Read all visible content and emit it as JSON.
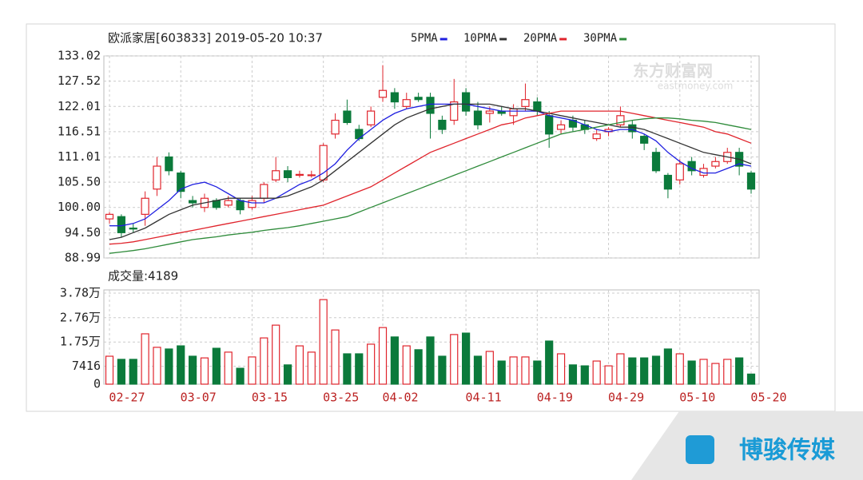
{
  "chart_data": {
    "type": "candlestick",
    "title": "欧派家居[603833] 2019-05-20 10:37",
    "volume_title": "成交量:4189",
    "watermark_top": "东方财富网",
    "watermark_top_sub": "eastmoney.com",
    "watermark": "博骏传媒",
    "up_color": "#e0242c",
    "down_color": "#0b7a3b",
    "grid": true,
    "categories": [
      "02-27",
      null,
      null,
      null,
      null,
      null,
      "03-07",
      null,
      null,
      null,
      null,
      null,
      "03-15",
      null,
      null,
      null,
      null,
      null,
      "03-25",
      null,
      null,
      null,
      null,
      "04-02",
      null,
      null,
      null,
      null,
      null,
      null,
      "04-11",
      null,
      null,
      null,
      null,
      null,
      "04-19",
      null,
      null,
      null,
      null,
      null,
      "04-29",
      null,
      null,
      null,
      null,
      null,
      "05-10",
      null,
      null,
      null,
      null,
      null,
      "05-20"
    ],
    "open": [
      97.5,
      98,
      95.5,
      98.5,
      104,
      111,
      107.5,
      101.5,
      100,
      101.5,
      100.5,
      101.5,
      100,
      102,
      106,
      108,
      107,
      107,
      106,
      116,
      121,
      117,
      118,
      124,
      125,
      122,
      124,
      124,
      119,
      119,
      125,
      121,
      120.5,
      121,
      120,
      122,
      123,
      120,
      117,
      119,
      118,
      115,
      116.5,
      118,
      118,
      115.5,
      112,
      107,
      106,
      110,
      107,
      109,
      110,
      112,
      107.5
    ],
    "high": [
      99,
      98.5,
      96.5,
      103.5,
      111,
      112,
      108,
      102.5,
      103,
      102,
      102.5,
      102,
      102.5,
      105.5,
      111,
      109,
      108,
      108,
      114,
      120.5,
      123.5,
      118,
      122,
      131,
      126,
      125,
      125,
      125,
      120,
      128,
      126,
      123,
      122,
      122,
      122.5,
      127,
      124,
      121,
      119,
      120,
      119,
      117,
      117.5,
      122,
      119,
      116,
      113,
      107.5,
      110.5,
      111,
      109.5,
      111,
      113,
      113,
      108
    ],
    "low": [
      96.5,
      93.5,
      94.5,
      96,
      102.5,
      107,
      102,
      100,
      99,
      99.5,
      100,
      98.5,
      99.5,
      101,
      105.5,
      105.5,
      106.5,
      106.5,
      105.5,
      115,
      118,
      114.5,
      117.5,
      123,
      121.5,
      121.5,
      123,
      115,
      116,
      118,
      120,
      117,
      118.5,
      120,
      118,
      121,
      120,
      113,
      116,
      116.5,
      116,
      114.5,
      115.5,
      117.5,
      115,
      112.5,
      107.5,
      102,
      105,
      107,
      106.5,
      108.5,
      109.5,
      107,
      103
    ],
    "close": [
      98.5,
      94.5,
      95.3,
      102,
      109,
      108,
      103.5,
      101,
      102,
      100,
      101.5,
      99.5,
      101.5,
      105,
      108,
      106.5,
      107.2,
      107.1,
      113.5,
      119,
      118.5,
      115,
      121,
      125.5,
      123,
      123.5,
      123.5,
      120.5,
      117,
      123,
      121,
      118,
      121,
      120.5,
      121.5,
      123.5,
      121,
      116,
      118,
      117.5,
      117,
      116,
      117,
      120,
      116.5,
      114,
      108,
      104,
      109.5,
      108,
      108.5,
      110,
      112,
      109,
      104
    ],
    "volume": [
      11600,
      10300,
      10300,
      20900,
      15300,
      14600,
      15900,
      11600,
      10900,
      14900,
      13300,
      6600,
      11300,
      19200,
      24500,
      8000,
      15900,
      13300,
      35100,
      22500,
      12600,
      12600,
      16600,
      23500,
      19600,
      15900,
      14300,
      19600,
      11600,
      20600,
      21200,
      11600,
      13600,
      9600,
      11300,
      11300,
      9600,
      17900,
      12600,
      8000,
      7600,
      9600,
      7600,
      12600,
      10900,
      10900,
      11600,
      14600,
      12600,
      9600,
      10300,
      8600,
      10300,
      10900,
      4189
    ],
    "series": [
      {
        "name": "5PMA",
        "color": "#2020e0",
        "values": [
          96,
          96,
          96.5,
          97.5,
          99.5,
          101.5,
          104,
          105,
          105.5,
          104.5,
          103,
          101.5,
          101,
          101,
          102,
          103.5,
          105,
          106,
          107.5,
          109.5,
          112.5,
          115,
          117,
          119,
          120.5,
          121.5,
          122,
          122.5,
          122.5,
          122.5,
          122.5,
          122,
          121.5,
          121,
          121,
          121,
          121,
          120,
          119.5,
          119,
          118,
          117,
          116.5,
          117,
          117,
          116,
          114.5,
          112,
          110,
          108.5,
          107.5,
          107.5,
          108.5,
          109.5,
          109
        ]
      },
      {
        "name": "10PMA",
        "color": "#333333",
        "values": [
          93,
          93.5,
          94.5,
          95.5,
          97,
          98.5,
          99.5,
          100.5,
          101,
          101.5,
          102,
          102,
          102,
          102,
          102,
          102.5,
          103.5,
          104.5,
          106,
          108,
          110,
          112,
          114,
          116,
          118,
          119.5,
          120.5,
          121.5,
          122,
          122.5,
          122.5,
          122.5,
          122.5,
          122,
          121.5,
          121.5,
          121,
          120.5,
          120,
          119.5,
          119,
          118.5,
          118,
          117.5,
          117.5,
          117,
          116,
          115,
          114,
          113,
          112,
          111.5,
          111,
          110.5,
          109.5
        ]
      },
      {
        "name": "20PMA",
        "color": "#e0242c",
        "values": [
          92,
          92.2,
          92.5,
          93,
          93.5,
          94,
          94.5,
          95,
          95.5,
          96,
          96.5,
          97,
          97.5,
          98,
          98.5,
          99,
          99.5,
          100,
          100.5,
          101.5,
          102.5,
          103.5,
          104.5,
          106,
          107.5,
          109,
          110.5,
          112,
          113,
          114,
          115,
          116,
          117,
          118,
          118.5,
          119.5,
          120,
          120.5,
          121,
          121,
          121,
          121,
          121,
          121,
          120.5,
          120,
          119.5,
          119,
          118.5,
          118,
          117.5,
          116.5,
          116,
          115,
          114
        ]
      },
      {
        "name": "30PMA",
        "color": "#2e8b3a",
        "values": [
          90,
          90.3,
          90.6,
          91,
          91.5,
          92,
          92.5,
          93,
          93.3,
          93.6,
          94,
          94.3,
          94.6,
          95,
          95.3,
          95.6,
          96,
          96.5,
          97,
          97.5,
          98,
          99,
          100,
          101,
          102,
          103,
          104,
          105,
          106,
          107,
          108,
          109,
          110,
          111,
          112,
          113,
          114,
          115,
          116,
          116.5,
          117,
          117.5,
          118,
          118.5,
          119,
          119.3,
          119.5,
          119.5,
          119.3,
          119,
          118.8,
          118.5,
          118,
          117.5,
          117
        ]
      }
    ],
    "ylim": [
      88.99,
      133.02
    ],
    "yticks": [
      88.99,
      {
        "value": 94.5,
        "label": "94.50"
      },
      {
        "value": 100,
        "label": "100.00"
      },
      {
        "value": 105.5,
        "label": "105.50"
      },
      111.01,
      116.51,
      122.01,
      127.52,
      133.02
    ],
    "y2lim": [
      0,
      37800
    ],
    "y2ticks": [
      0,
      7416,
      {
        "value": 17500,
        "label": "1.75万"
      },
      {
        "value": 27600,
        "label": "2.76万"
      },
      {
        "value": 37800,
        "label": "3.78万"
      }
    ]
  }
}
